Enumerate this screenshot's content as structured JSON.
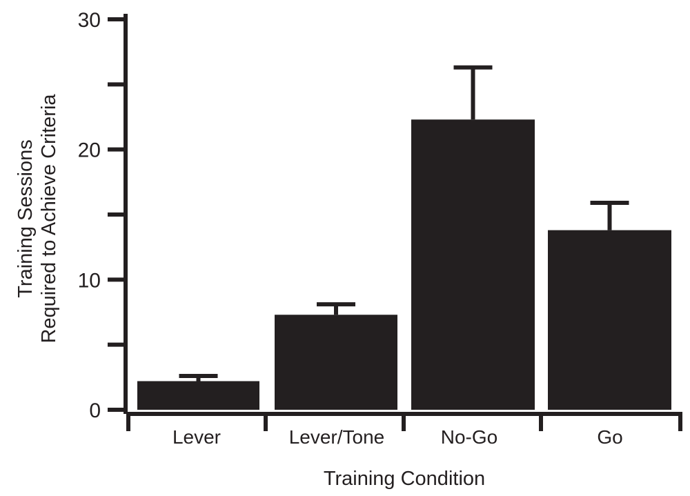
{
  "chart_data": {
    "type": "bar",
    "title": "",
    "xlabel": "Training Condition",
    "ylabel_lines": [
      "Training Sessions",
      "Required to Achieve Criteria"
    ],
    "categories": [
      "Lever",
      "Lever/Tone",
      "No-Go",
      "Go"
    ],
    "values": [
      2.2,
      7.3,
      22.3,
      13.8
    ],
    "errors": [
      0.4,
      0.8,
      4.0,
      2.1
    ],
    "ylim": [
      0,
      30
    ],
    "yticks_major": [
      0,
      10,
      20,
      30
    ],
    "yticks_minor": [
      5,
      15,
      25
    ],
    "grid": false,
    "legend": "none",
    "colors": {
      "bar": "#231f20",
      "axis": "#231f20"
    }
  }
}
